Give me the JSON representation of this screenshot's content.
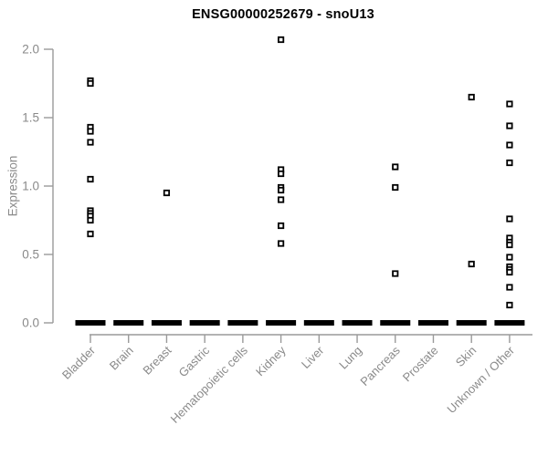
{
  "title": "ENSG00000252679 - snoU13",
  "colors": {
    "title_text": "#000000",
    "axis_line": "#9a9a9a",
    "axis_text": "#8a8a8a",
    "marker_stroke": "#000000",
    "marker_fill": "#ffffff",
    "background": "#ffffff"
  },
  "chart_data": {
    "type": "scatter",
    "title": "ENSG00000252679 - snoU13",
    "xlabel": "",
    "ylabel": "Expression",
    "ylim": [
      0.0,
      2.1
    ],
    "yticks": [
      "0.0",
      "0.5",
      "1.0",
      "1.5",
      "2.0"
    ],
    "grid": false,
    "legend": false,
    "marker": "open-square",
    "categories": [
      "Bladder",
      "Brain",
      "Breast",
      "Gastric",
      "Hematopoietic cells",
      "Kidney",
      "Liver",
      "Lung",
      "Pancreas",
      "Prostate",
      "Skin",
      "Unknown / Other"
    ],
    "nonzero_points": [
      {
        "category": "Bladder",
        "values": [
          1.77,
          1.75,
          1.43,
          1.4,
          1.32,
          1.05,
          0.82,
          0.8,
          0.78,
          0.75,
          0.65
        ]
      },
      {
        "category": "Brain",
        "values": []
      },
      {
        "category": "Breast",
        "values": [
          0.95
        ]
      },
      {
        "category": "Gastric",
        "values": []
      },
      {
        "category": "Hematopoietic cells",
        "values": []
      },
      {
        "category": "Kidney",
        "values": [
          2.07,
          1.12,
          1.09,
          0.99,
          0.97,
          0.9,
          0.71,
          0.58
        ]
      },
      {
        "category": "Liver",
        "values": []
      },
      {
        "category": "Lung",
        "values": []
      },
      {
        "category": "Pancreas",
        "values": [
          1.14,
          0.99,
          0.36
        ]
      },
      {
        "category": "Prostate",
        "values": []
      },
      {
        "category": "Skin",
        "values": [
          1.65,
          0.43
        ]
      },
      {
        "category": "Unknown / Other",
        "values": [
          1.6,
          1.44,
          1.3,
          1.17,
          0.76,
          0.62,
          0.59,
          0.57,
          0.48,
          0.41,
          0.39,
          0.37,
          0.26,
          0.13
        ]
      }
    ],
    "zero_cluster": {
      "value": 0.0,
      "all_categories": true,
      "appearance": "dense overlapping points at 0 forming a thick black dash per category"
    }
  }
}
